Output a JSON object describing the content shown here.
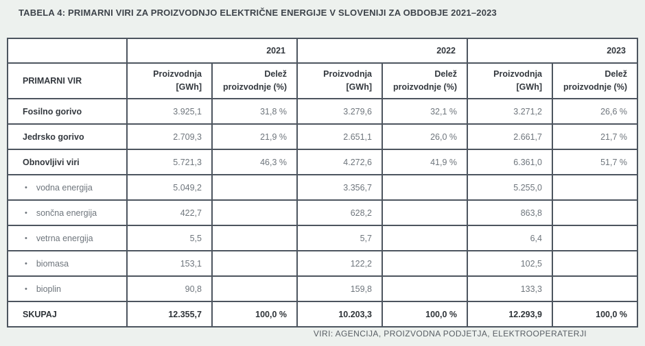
{
  "page": {
    "title": "TABELA 4: PRIMARNI VIRI ZA PROIZVODNJO ELEKTRIČNE ENERGIJE V SLOVENIJI ZA OBDOBJE 2021–2023",
    "source_note": "VIRI: AGENCIJA, PROIZVODNA PODJETJA, ELEKTROOPERATERJI"
  },
  "colors": {
    "page_background": "#edf1ee",
    "cell_background": "#ffffff",
    "table_border": "#4c545e",
    "text_dark": "#33383e",
    "text_gray": "#6e757c"
  },
  "icons": {
    "bullet": "•"
  },
  "table": {
    "year_groups": [
      "2021",
      "2022",
      "2023"
    ],
    "row_header": "PRIMARNI VIR",
    "col_headers": {
      "production": "Proizvodnja\n[GWh]",
      "share": "Delež\nproizvodnje (%)"
    },
    "rows": [
      {
        "label": "Fosilno gorivo",
        "style": "category",
        "values": [
          "3.925,1",
          "31,8 %",
          "3.279,6",
          "32,1 %",
          "3.271,2",
          "26,6 %"
        ]
      },
      {
        "label": "Jedrsko gorivo",
        "style": "category",
        "values": [
          "2.709,3",
          "21,9 %",
          "2.651,1",
          "26,0 %",
          "2.661,7",
          "21,7 %"
        ]
      },
      {
        "label": "Obnovljivi viri",
        "style": "category",
        "values": [
          "5.721,3",
          "46,3 %",
          "4.272,6",
          "41,9 %",
          "6.361,0",
          "51,7 %"
        ]
      },
      {
        "label": "vodna energija",
        "style": "sub",
        "values": [
          "5.049,2",
          "",
          "3.356,7",
          "",
          "5.255,0",
          ""
        ]
      },
      {
        "label": "sončna energija",
        "style": "sub",
        "values": [
          "422,7",
          "",
          "628,2",
          "",
          "863,8",
          ""
        ]
      },
      {
        "label": "vetrna energija",
        "style": "sub",
        "values": [
          "5,5",
          "",
          "5,7",
          "",
          "6,4",
          ""
        ]
      },
      {
        "label": "biomasa",
        "style": "sub",
        "values": [
          "153,1",
          "",
          "122,2",
          "",
          "102,5",
          ""
        ]
      },
      {
        "label": "bioplin",
        "style": "sub",
        "values": [
          "90,8",
          "",
          "159,8",
          "",
          "133,3",
          ""
        ]
      },
      {
        "label": "SKUPAJ",
        "style": "total",
        "values": [
          "12.355,7",
          "100,0 %",
          "10.203,3",
          "100,0 %",
          "12.293,9",
          "100,0 %"
        ]
      }
    ]
  }
}
